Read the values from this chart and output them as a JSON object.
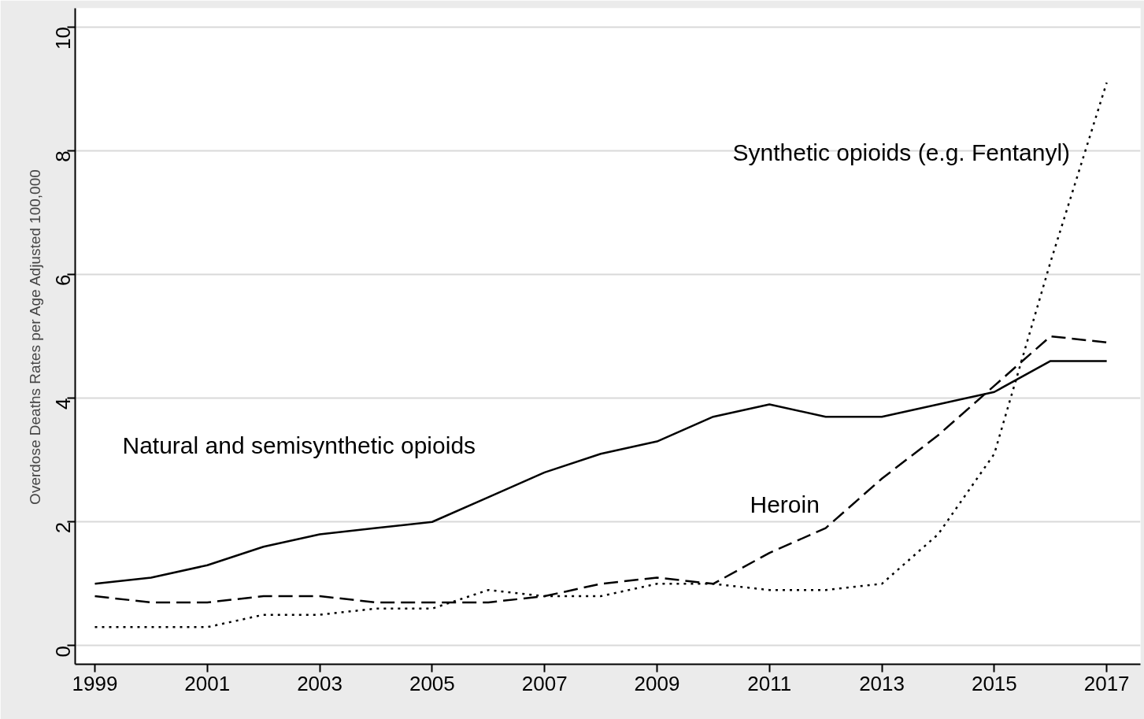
{
  "chart_data": {
    "type": "line",
    "ylabel": "Overdose Deaths Rates per Age Adjusted 100,000",
    "x": [
      1999,
      2000,
      2001,
      2002,
      2003,
      2004,
      2005,
      2006,
      2007,
      2008,
      2009,
      2010,
      2011,
      2012,
      2013,
      2014,
      2015,
      2016,
      2017
    ],
    "series": [
      {
        "name": "Natural and semisynthetic opioids",
        "color": "#000000",
        "line_style": "solid",
        "values": [
          1.0,
          1.1,
          1.3,
          1.6,
          1.8,
          1.9,
          2.0,
          2.4,
          2.8,
          3.1,
          3.3,
          3.7,
          3.9,
          3.7,
          3.7,
          3.9,
          4.1,
          4.6,
          4.6
        ]
      },
      {
        "name": "Heroin",
        "color": "#000000",
        "line_style": "dashed",
        "values": [
          0.8,
          0.7,
          0.7,
          0.8,
          0.8,
          0.7,
          0.7,
          0.7,
          0.8,
          1.0,
          1.1,
          1.0,
          1.5,
          1.9,
          2.7,
          3.4,
          4.2,
          5.0,
          4.9
        ]
      },
      {
        "name": "Synthetic opioids (e.g. Fentanyl)",
        "color": "#000000",
        "line_style": "dotted",
        "values": [
          0.3,
          0.3,
          0.3,
          0.5,
          0.5,
          0.6,
          0.6,
          0.9,
          0.8,
          0.8,
          1.0,
          1.0,
          0.9,
          0.9,
          1.0,
          1.8,
          3.1,
          6.2,
          9.1
        ]
      }
    ],
    "xlim": [
      1998.65,
      2017.6
    ],
    "ylim": [
      -0.3,
      10.3
    ],
    "xticks": [
      1999,
      2001,
      2003,
      2005,
      2007,
      2009,
      2011,
      2013,
      2015,
      2017
    ],
    "yticks": [
      0,
      2,
      4,
      6,
      8,
      10
    ],
    "grid": "y",
    "marker": "none"
  }
}
